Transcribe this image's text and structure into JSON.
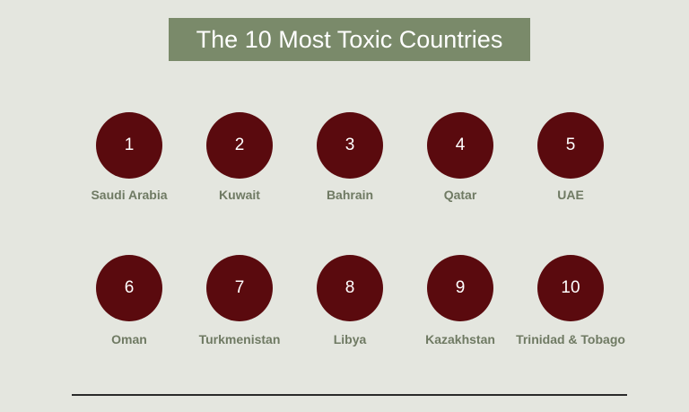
{
  "title": "The 10 Most Toxic Countries",
  "accent_colors": {
    "banner": "#7a8a6a",
    "circle": "#5a0a0e",
    "label": "#6f7a63"
  },
  "countries": [
    {
      "rank": "1",
      "name": "Saudi Arabia"
    },
    {
      "rank": "2",
      "name": "Kuwait"
    },
    {
      "rank": "3",
      "name": "Bahrain"
    },
    {
      "rank": "4",
      "name": "Qatar"
    },
    {
      "rank": "5",
      "name": "UAE"
    },
    {
      "rank": "6",
      "name": "Oman"
    },
    {
      "rank": "7",
      "name": "Turkmenistan"
    },
    {
      "rank": "8",
      "name": "Libya"
    },
    {
      "rank": "9",
      "name": "Kazakhstan"
    },
    {
      "rank": "10",
      "name": "Trinidad & Tobago"
    }
  ]
}
